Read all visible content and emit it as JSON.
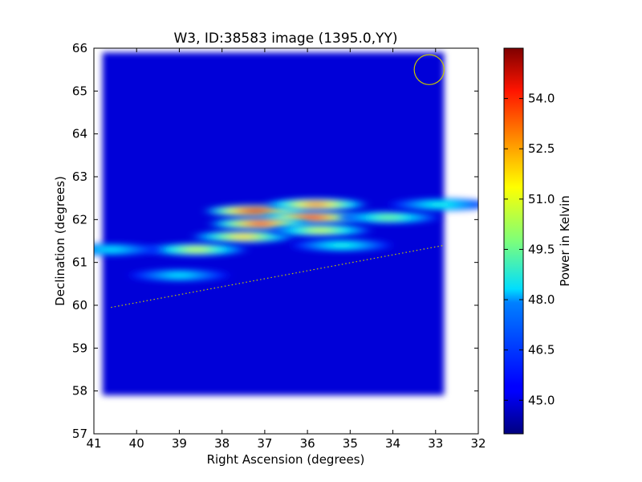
{
  "chart_data": {
    "type": "heatmap",
    "title": "W3, ID:38583 image (1395.0,YY)",
    "xlabel": "Right Ascension (degrees)",
    "ylabel": "Declination (degrees)",
    "xlim": [
      41,
      32
    ],
    "ylim": [
      57,
      66
    ],
    "x_ticks": [
      41,
      40,
      39,
      38,
      37,
      36,
      35,
      34,
      33,
      32
    ],
    "y_ticks": [
      57,
      58,
      59,
      60,
      61,
      62,
      63,
      64,
      65,
      66
    ],
    "colorbar": {
      "label": "Power in Kelvin",
      "min": 44.0,
      "max": 55.5,
      "ticks": [
        "45.0",
        "46.5",
        "48.0",
        "49.5",
        "51.0",
        "52.5",
        "54.0"
      ],
      "colormap": "jet"
    },
    "background_level": 45.0,
    "map_extent": {
      "ra": [
        40.8,
        32.8
      ],
      "dec": [
        57.9,
        65.9
      ]
    },
    "emission_features": [
      {
        "ra": 37.2,
        "dec": 62.2,
        "peak": 54.5
      },
      {
        "ra": 35.9,
        "dec": 62.05,
        "peak": 54.0
      },
      {
        "ra": 37.1,
        "dec": 61.9,
        "peak": 53.5
      },
      {
        "ra": 35.8,
        "dec": 62.35,
        "peak": 52.5
      },
      {
        "ra": 37.5,
        "dec": 61.6,
        "peak": 51.5
      },
      {
        "ra": 38.6,
        "dec": 61.3,
        "peak": 50.5
      },
      {
        "ra": 34.1,
        "dec": 62.05,
        "peak": 49.5
      },
      {
        "ra": 35.7,
        "dec": 61.75,
        "peak": 50.5
      },
      {
        "ra": 35.2,
        "dec": 61.4,
        "peak": 48.5
      },
      {
        "ra": 39.0,
        "dec": 60.7,
        "peak": 48.0
      },
      {
        "ra": 32.9,
        "dec": 62.35,
        "peak": 48.5
      },
      {
        "ra": 40.6,
        "dec": 61.3,
        "peak": 48.0
      }
    ],
    "beam_circle": {
      "ra": 33.15,
      "dec": 65.5,
      "radius_deg": 0.35,
      "color": "#c8c800"
    },
    "galactic_plane": {
      "from": [
        40.6,
        59.95
      ],
      "to": [
        32.8,
        61.4
      ],
      "color": "#c8c800",
      "style": "dotted"
    }
  }
}
